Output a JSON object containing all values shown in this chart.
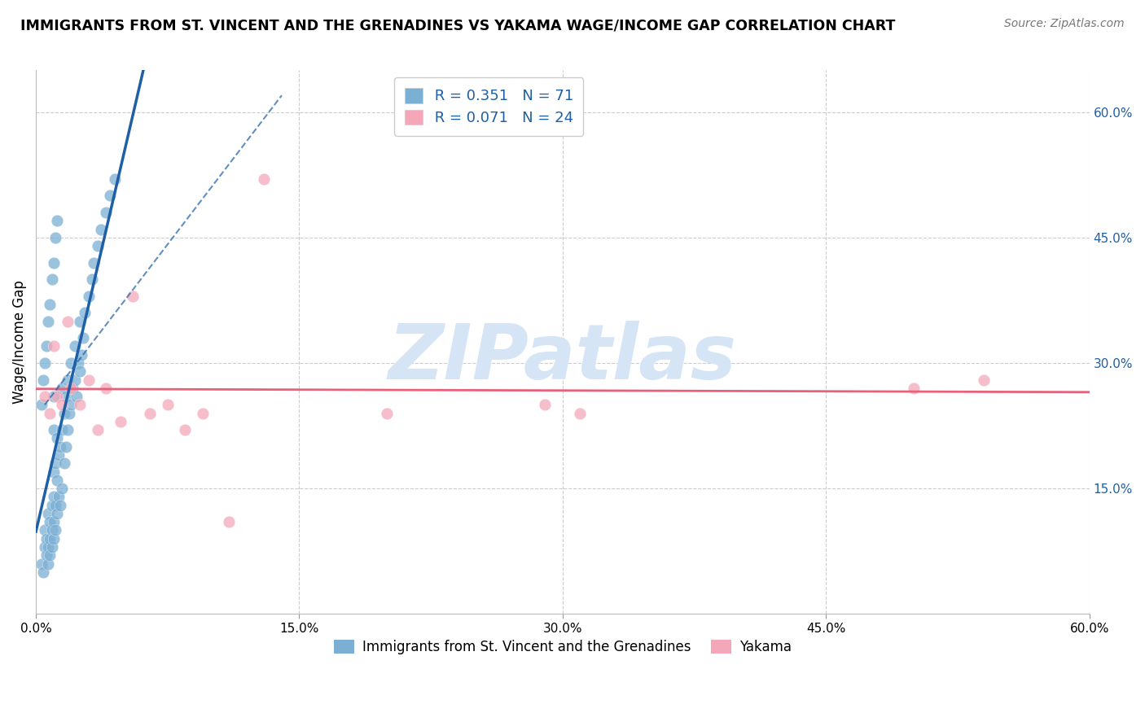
{
  "title": "IMMIGRANTS FROM ST. VINCENT AND THE GRENADINES VS YAKAMA WAGE/INCOME GAP CORRELATION CHART",
  "source": "Source: ZipAtlas.com",
  "ylabel": "Wage/Income Gap",
  "xlabel": "",
  "xlim": [
    0.0,
    0.6
  ],
  "ylim": [
    0.0,
    0.65
  ],
  "xtick_labels": [
    "0.0%",
    "15.0%",
    "30.0%",
    "45.0%",
    "60.0%"
  ],
  "xtick_vals": [
    0.0,
    0.15,
    0.3,
    0.45,
    0.6
  ],
  "ytick_labels_right": [
    "15.0%",
    "30.0%",
    "45.0%",
    "60.0%"
  ],
  "ytick_vals_right": [
    0.15,
    0.3,
    0.45,
    0.6
  ],
  "blue_R": 0.351,
  "blue_N": 71,
  "pink_R": 0.071,
  "pink_N": 24,
  "blue_color": "#7BAFD4",
  "pink_color": "#F4A7B9",
  "blue_line_color": "#1F5FA6",
  "pink_line_color": "#E8607A",
  "background_color": "#FFFFFF",
  "watermark": "ZIPatlas",
  "watermark_color": "#D5E5F5",
  "legend_label_blue": "Immigrants from St. Vincent and the Grenadines",
  "legend_label_pink": "Yakama",
  "grid_color": "#CCCCCC",
  "blue_scatter_x": [
    0.003,
    0.004,
    0.005,
    0.005,
    0.006,
    0.006,
    0.007,
    0.007,
    0.007,
    0.008,
    0.008,
    0.008,
    0.009,
    0.009,
    0.009,
    0.01,
    0.01,
    0.01,
    0.01,
    0.01,
    0.01,
    0.011,
    0.011,
    0.011,
    0.012,
    0.012,
    0.012,
    0.013,
    0.013,
    0.014,
    0.014,
    0.015,
    0.015,
    0.015,
    0.016,
    0.016,
    0.017,
    0.017,
    0.018,
    0.018,
    0.019,
    0.02,
    0.02,
    0.021,
    0.022,
    0.022,
    0.023,
    0.024,
    0.025,
    0.025,
    0.026,
    0.027,
    0.028,
    0.03,
    0.032,
    0.033,
    0.035,
    0.037,
    0.04,
    0.042,
    0.045,
    0.003,
    0.004,
    0.005,
    0.006,
    0.007,
    0.008,
    0.009,
    0.01,
    0.011,
    0.012
  ],
  "blue_scatter_y": [
    0.06,
    0.05,
    0.08,
    0.1,
    0.07,
    0.09,
    0.06,
    0.08,
    0.12,
    0.07,
    0.09,
    0.11,
    0.08,
    0.1,
    0.13,
    0.09,
    0.11,
    0.14,
    0.17,
    0.22,
    0.26,
    0.1,
    0.13,
    0.18,
    0.12,
    0.16,
    0.21,
    0.14,
    0.19,
    0.13,
    0.2,
    0.15,
    0.22,
    0.27,
    0.18,
    0.24,
    0.2,
    0.26,
    0.22,
    0.28,
    0.24,
    0.25,
    0.3,
    0.27,
    0.28,
    0.32,
    0.26,
    0.3,
    0.29,
    0.35,
    0.31,
    0.33,
    0.36,
    0.38,
    0.4,
    0.42,
    0.44,
    0.46,
    0.48,
    0.5,
    0.52,
    0.25,
    0.28,
    0.3,
    0.32,
    0.35,
    0.37,
    0.4,
    0.42,
    0.45,
    0.47
  ],
  "pink_scatter_x": [
    0.005,
    0.008,
    0.01,
    0.012,
    0.015,
    0.018,
    0.02,
    0.025,
    0.03,
    0.035,
    0.04,
    0.048,
    0.055,
    0.065,
    0.075,
    0.085,
    0.095,
    0.11,
    0.13,
    0.2,
    0.29,
    0.31,
    0.5,
    0.54
  ],
  "pink_scatter_y": [
    0.26,
    0.24,
    0.32,
    0.26,
    0.25,
    0.35,
    0.27,
    0.25,
    0.28,
    0.22,
    0.27,
    0.23,
    0.38,
    0.24,
    0.25,
    0.22,
    0.24,
    0.11,
    0.52,
    0.24,
    0.25,
    0.24,
    0.27,
    0.28
  ]
}
